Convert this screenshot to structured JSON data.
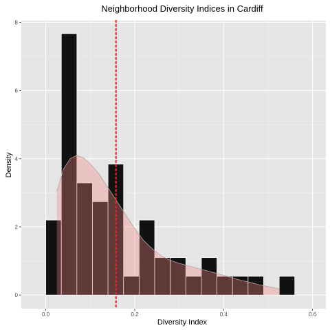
{
  "chart_data": {
    "type": "histogram",
    "title": "Neighborhood Diversity Indices in Cardiff",
    "xlabel": "Diversity Index",
    "ylabel": "Density",
    "xlim": [
      -0.055,
      0.63
    ],
    "ylim": [
      -0.4,
      8.05
    ],
    "x_ticks": [
      0.0,
      0.2,
      0.4,
      0.6
    ],
    "x_tick_labels": [
      "0.0",
      "0.2",
      "0.4",
      "0.6"
    ],
    "y_ticks": [
      0,
      2,
      4,
      6,
      8
    ],
    "y_tick_labels": [
      "0",
      "2",
      "4",
      "6",
      "8"
    ],
    "bin_width": 0.035,
    "bins": [
      {
        "x0": 0.0,
        "x1": 0.035,
        "density": 2.2
      },
      {
        "x0": 0.035,
        "x1": 0.07,
        "density": 7.67
      },
      {
        "x0": 0.07,
        "x1": 0.105,
        "density": 3.29
      },
      {
        "x0": 0.105,
        "x1": 0.14,
        "density": 2.74
      },
      {
        "x0": 0.14,
        "x1": 0.175,
        "density": 3.84
      },
      {
        "x0": 0.175,
        "x1": 0.21,
        "density": 0.55
      },
      {
        "x0": 0.21,
        "x1": 0.245,
        "density": 2.2
      },
      {
        "x0": 0.245,
        "x1": 0.28,
        "density": 1.1
      },
      {
        "x0": 0.28,
        "x1": 0.315,
        "density": 1.1
      },
      {
        "x0": 0.315,
        "x1": 0.35,
        "density": 0.55
      },
      {
        "x0": 0.35,
        "x1": 0.385,
        "density": 1.1
      },
      {
        "x0": 0.385,
        "x1": 0.42,
        "density": 0.55
      },
      {
        "x0": 0.42,
        "x1": 0.455,
        "density": 0.55
      },
      {
        "x0": 0.455,
        "x1": 0.49,
        "density": 0.55
      },
      {
        "x0": 0.49,
        "x1": 0.525,
        "density": 0
      },
      {
        "x0": 0.525,
        "x1": 0.56,
        "density": 0.55
      }
    ],
    "density_curve": {
      "x": [
        0.025,
        0.04,
        0.055,
        0.07,
        0.085,
        0.1,
        0.12,
        0.14,
        0.16,
        0.18,
        0.2,
        0.22,
        0.24,
        0.26,
        0.28,
        0.3,
        0.32,
        0.34,
        0.36,
        0.38,
        0.4,
        0.42,
        0.44,
        0.46,
        0.48,
        0.5,
        0.525
      ],
      "y": [
        3.05,
        3.7,
        4.0,
        4.1,
        4.02,
        3.85,
        3.55,
        3.15,
        2.75,
        2.35,
        1.95,
        1.6,
        1.35,
        1.15,
        1.02,
        0.93,
        0.86,
        0.79,
        0.72,
        0.65,
        0.58,
        0.5,
        0.43,
        0.37,
        0.3,
        0.25,
        0.18
      ]
    },
    "reference_line": {
      "x": 0.158,
      "style": "dotted"
    },
    "grid": true,
    "colors": {
      "panel_background": "#e5e5e5",
      "grid_major": "#ffffff",
      "grid_minor": "#f2f2f2",
      "bar_fill": "#111111",
      "bar_edge": "#ffffff",
      "density_fill": "#f08080",
      "density_edge": "#a9a9a9",
      "reference_line": "#e8262b"
    }
  }
}
